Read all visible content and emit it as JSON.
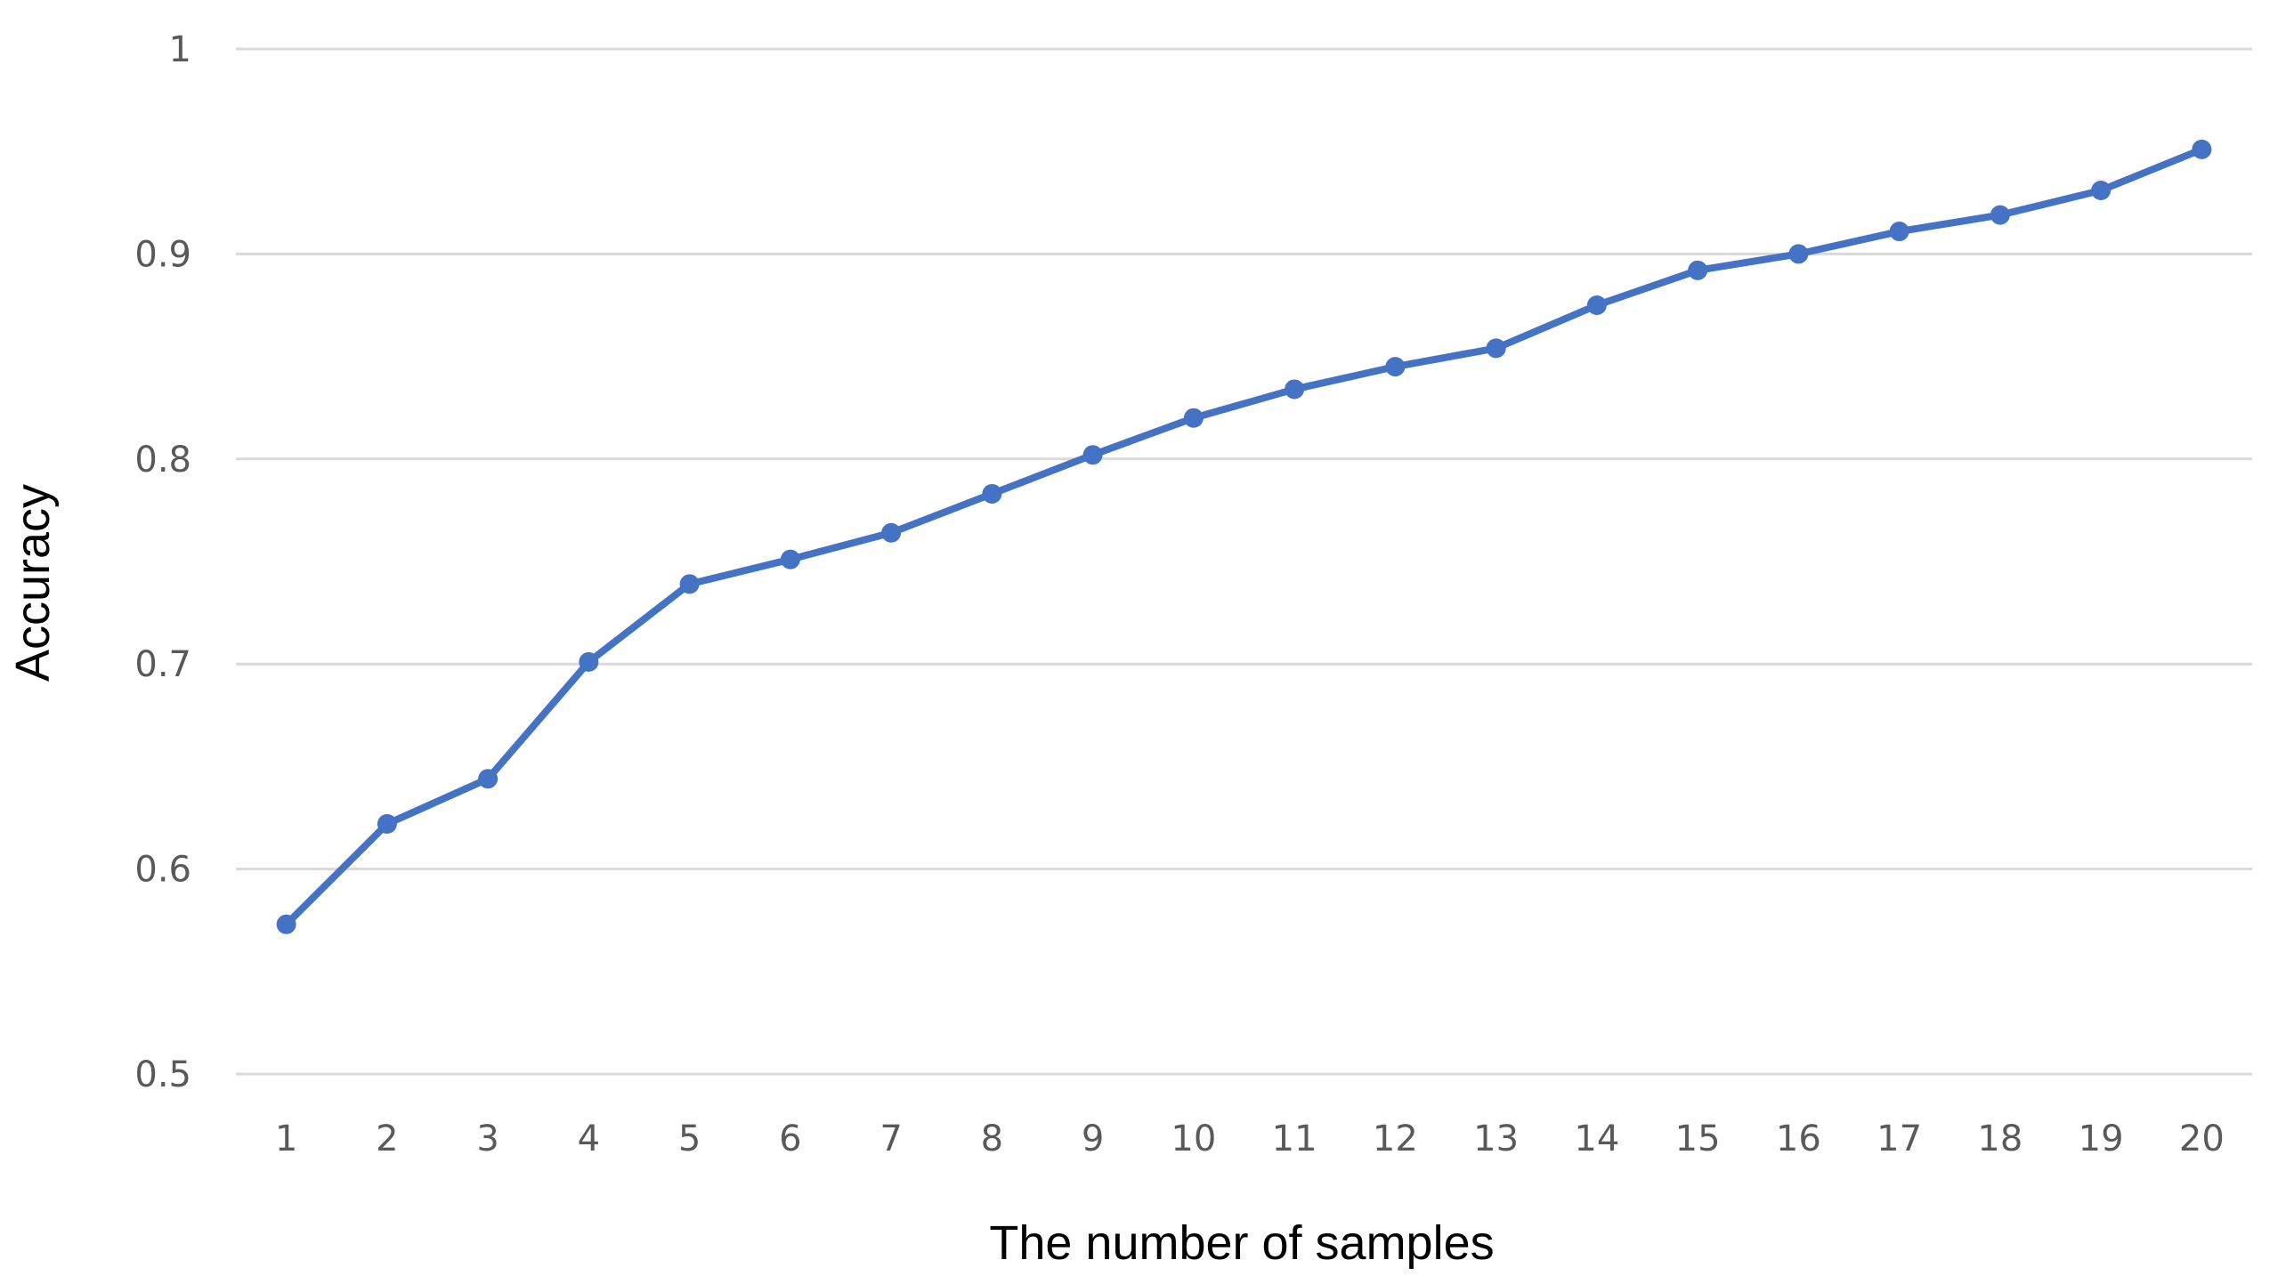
{
  "chart_data": {
    "type": "line",
    "title": "",
    "xlabel": "The number of samples",
    "ylabel": "Accuracy",
    "categories": [
      "1",
      "2",
      "3",
      "4",
      "5",
      "6",
      "7",
      "8",
      "9",
      "10",
      "11",
      "12",
      "13",
      "14",
      "15",
      "16",
      "17",
      "18",
      "19",
      "20"
    ],
    "series": [
      {
        "values": [
          0.573,
          0.622,
          0.644,
          0.701,
          0.739,
          0.751,
          0.764,
          0.783,
          0.802,
          0.82,
          0.834,
          0.845,
          0.854,
          0.875,
          0.892,
          0.9,
          0.911,
          0.919,
          0.931,
          0.951
        ]
      }
    ],
    "ylim": [
      0.5,
      1
    ],
    "yticks": [
      "0.5",
      "0.6",
      "0.7",
      "0.8",
      "0.9",
      "1"
    ],
    "grid": true,
    "legend": "none",
    "colors": {
      "series": "#4472c4",
      "grid": "#d9d9d9",
      "tick_text": "#595959"
    }
  }
}
